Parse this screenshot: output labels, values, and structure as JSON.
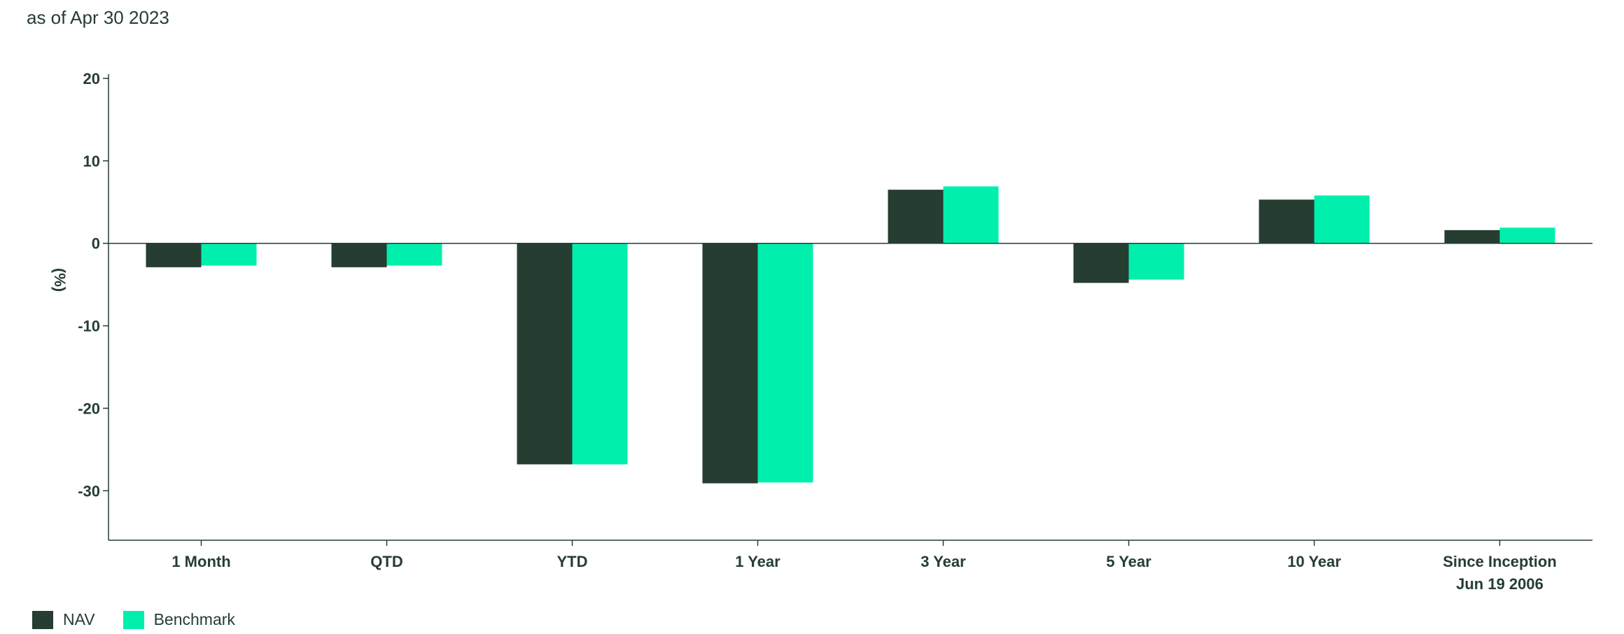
{
  "header": {
    "as_of": "as of Apr 30 2023"
  },
  "colors": {
    "nav": "#263d32",
    "benchmark": "#00efad",
    "axis": "#263d32"
  },
  "legend": [
    {
      "name": "NAV",
      "color": "#263d32"
    },
    {
      "name": "Benchmark",
      "color": "#00efad"
    }
  ],
  "chart_data": {
    "type": "bar",
    "title": "",
    "xlabel": "",
    "ylabel": "(%)",
    "ylim": [
      -36,
      20
    ],
    "yticks": [
      20,
      10,
      0,
      -10,
      -20,
      -30
    ],
    "categories": [
      "1 Month",
      "QTD",
      "YTD",
      "1 Year",
      "3 Year",
      "5 Year",
      "10 Year",
      "Since Inception\nJun 19 2006"
    ],
    "series": [
      {
        "name": "NAV",
        "values": [
          -2.9,
          -2.9,
          -26.8,
          -29.1,
          6.5,
          -4.8,
          5.3,
          1.6
        ]
      },
      {
        "name": "Benchmark",
        "values": [
          -2.7,
          -2.7,
          -26.8,
          -29.0,
          6.9,
          -4.4,
          5.8,
          1.9
        ]
      }
    ],
    "grid": false,
    "legend_position": "bottom-left"
  }
}
